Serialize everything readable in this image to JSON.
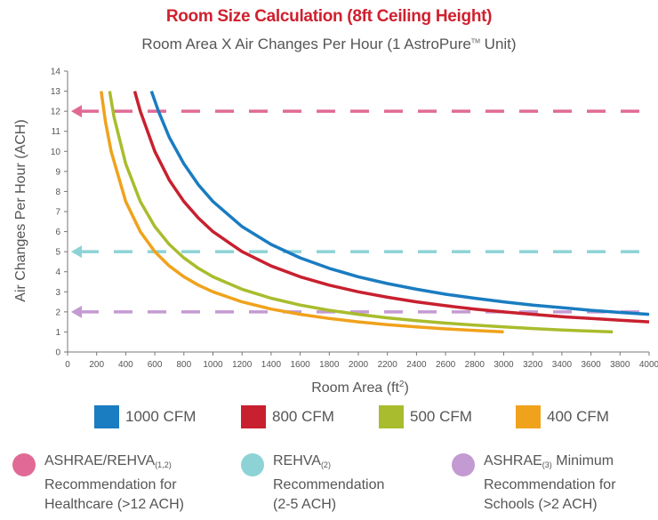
{
  "chart_data": {
    "type": "line",
    "title": "Room Size Calculation (8ft Ceiling Height)",
    "subtitle": "Room Area X Air Changes Per Hour (1 AstroPure",
    "subtitle_tm": "TM",
    "subtitle_end": " Unit)",
    "xlabel": "Room Area (ft",
    "xlabel_sup": "2",
    "xlabel_end": ")",
    "ylabel": "Air Changes Per Hour (ACH)",
    "xlim": [
      0,
      4000
    ],
    "ylim": [
      0,
      14
    ],
    "x_ticks": [
      0,
      200,
      400,
      600,
      800,
      1000,
      1200,
      1400,
      1600,
      1800,
      2000,
      2200,
      2400,
      2600,
      2800,
      3000,
      3200,
      3400,
      3600,
      3800,
      4000
    ],
    "y_ticks": [
      0,
      1,
      2,
      3,
      4,
      5,
      6,
      7,
      8,
      9,
      10,
      11,
      12,
      13,
      14
    ],
    "grid": false,
    "legend_position": "bottom",
    "series": [
      {
        "name": "1000 CFM",
        "color": "#1a7cc1",
        "x": [
          577,
          625,
          700,
          800,
          900,
          1000,
          1200,
          1400,
          1600,
          1800,
          2000,
          2200,
          2400,
          2600,
          2800,
          3000,
          3200,
          3400,
          3600,
          3800,
          4000
        ],
        "y": [
          13.0,
          12.0,
          10.7,
          9.38,
          8.33,
          7.5,
          6.25,
          5.36,
          4.69,
          4.17,
          3.75,
          3.41,
          3.13,
          2.88,
          2.68,
          2.5,
          2.34,
          2.21,
          2.08,
          1.97,
          1.88
        ]
      },
      {
        "name": "800 CFM",
        "color": "#c8202f",
        "x": [
          462,
          500,
          600,
          700,
          800,
          900,
          1000,
          1200,
          1400,
          1600,
          1800,
          2000,
          2200,
          2400,
          2600,
          2800,
          3000,
          3200,
          3400,
          3600,
          3800,
          4000
        ],
        "y": [
          13.0,
          12.0,
          10.0,
          8.57,
          7.5,
          6.67,
          6.0,
          5.0,
          4.29,
          3.75,
          3.33,
          3.0,
          2.73,
          2.5,
          2.31,
          2.14,
          2.0,
          1.88,
          1.76,
          1.67,
          1.58,
          1.5
        ]
      },
      {
        "name": "500 CFM",
        "color": "#a9bc2d",
        "x": [
          289,
          320,
          400,
          500,
          600,
          700,
          800,
          900,
          1000,
          1200,
          1400,
          1600,
          1800,
          2000,
          2200,
          2400,
          2600,
          2800,
          3000,
          3200,
          3400,
          3600,
          3750
        ],
        "y": [
          13.0,
          11.7,
          9.38,
          7.5,
          6.25,
          5.36,
          4.69,
          4.17,
          3.75,
          3.13,
          2.68,
          2.34,
          2.08,
          1.88,
          1.7,
          1.56,
          1.44,
          1.34,
          1.25,
          1.17,
          1.1,
          1.04,
          1.0
        ]
      },
      {
        "name": "400 CFM",
        "color": "#f0a21c",
        "x": [
          231,
          260,
          300,
          400,
          500,
          600,
          700,
          800,
          900,
          1000,
          1200,
          1400,
          1600,
          1800,
          2000,
          2200,
          2400,
          2600,
          2800,
          3000
        ],
        "y": [
          13.0,
          11.5,
          10.0,
          7.5,
          6.0,
          5.0,
          4.29,
          3.75,
          3.33,
          3.0,
          2.5,
          2.14,
          1.88,
          1.67,
          1.5,
          1.36,
          1.25,
          1.15,
          1.07,
          1.0
        ]
      }
    ],
    "reference_lines": [
      {
        "y": 12,
        "color": "#e06a95",
        "style": "dashed",
        "arrow": "left"
      },
      {
        "y": 5,
        "color": "#8dd3d5",
        "style": "dashed",
        "arrow": "left"
      },
      {
        "y": 2,
        "color": "#c49ad2",
        "style": "dashed",
        "arrow": "left"
      }
    ]
  },
  "legend": [
    {
      "label": "1000 CFM",
      "color": "#1a7cc1"
    },
    {
      "label": "800 CFM",
      "color": "#c8202f"
    },
    {
      "label": "500 CFM",
      "color": "#a9bc2d"
    },
    {
      "label": "400 CFM",
      "color": "#f0a21c"
    }
  ],
  "recommendations": [
    {
      "color": "#e06a95",
      "line1": "ASHRAE/REHVA",
      "line1_sub": "(1,2)",
      "line1_end": "",
      "line2": "Recommendation for",
      "line3": "Healthcare (>12 ACH)"
    },
    {
      "color": "#8dd3d5",
      "line1": "REHVA",
      "line1_sub": "(2)",
      "line1_end": "",
      "line2": "Recommendation",
      "line3": "(2-5 ACH)"
    },
    {
      "color": "#c49ad2",
      "line1": "ASHRAE",
      "line1_sub": "(3)",
      "line1_end": " Minimum",
      "line2": "Recommendation for",
      "line3": "Schools (>2 ACH)"
    }
  ]
}
